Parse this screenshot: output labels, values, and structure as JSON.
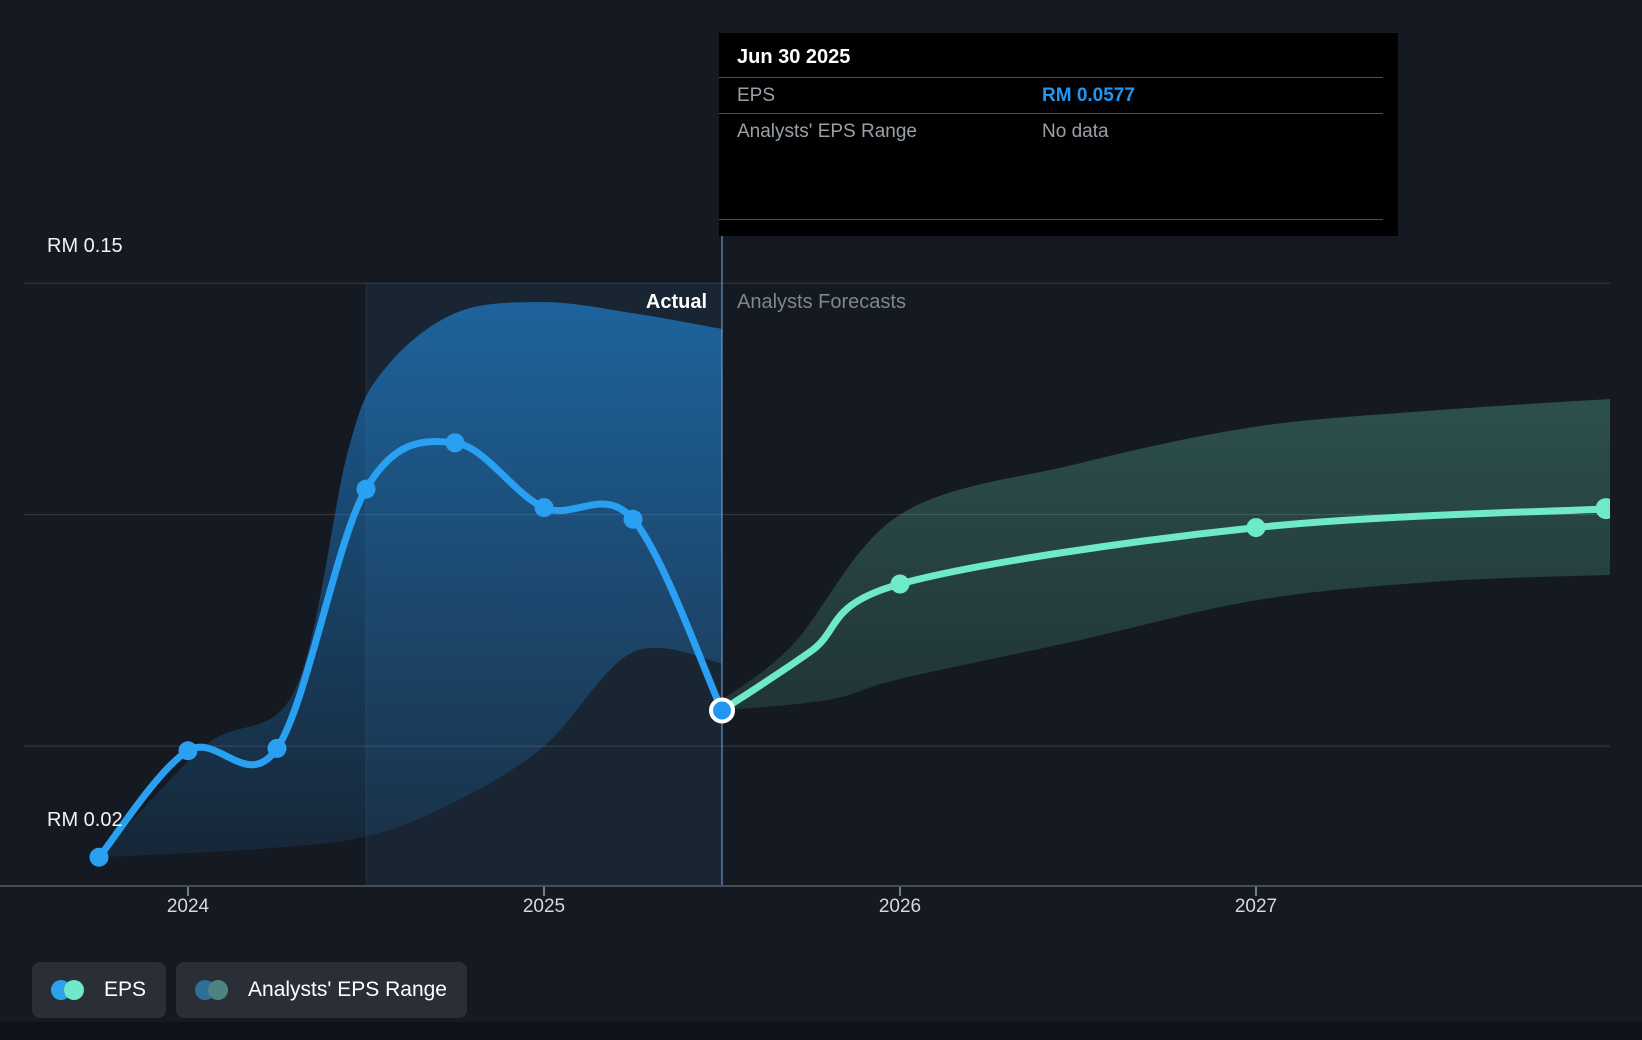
{
  "labels": {
    "actual": "Actual",
    "forecast": "Analysts Forecasts",
    "y_top": "RM 0.15",
    "y_bottom": "RM 0.02"
  },
  "tooltip": {
    "title": "Jun 30 2025",
    "rows": [
      {
        "label": "EPS",
        "value": "RM 0.0577",
        "type": "accent"
      },
      {
        "label": "Analysts' EPS Range",
        "value": "No data",
        "type": "muted"
      }
    ]
  },
  "legend": [
    {
      "label": "EPS",
      "colors": [
        "#2ba2ea",
        "#6fe8ca"
      ]
    },
    {
      "label": "Analysts' EPS Range",
      "colors": [
        "#2e7095",
        "#4f8381"
      ]
    }
  ],
  "colors": {
    "background": "#151a22",
    "accent_blue": "#2196f3",
    "line_blue": "#2aa0f2",
    "line_mint": "#6ee9c9",
    "gridline": "rgba(255,255,255,0.14)",
    "axis": "#474d55",
    "tick": "#787f88",
    "divider_line": "rgba(115,170,230,0.5)",
    "band_highlight": "rgba(64,140,210,0.10)",
    "blue_area_top": "rgba(33,150,243,0.55)",
    "blue_area_bottom": "rgba(33,150,243,0.08)",
    "mint_area_top": "rgba(110,231,200,0.26)",
    "mint_area_bottom": "rgba(110,231,200,0.13)"
  },
  "chart_data": {
    "type": "line",
    "title": "EPS: Actual vs Analysts Forecasts",
    "currency": "RM",
    "y_axis": {
      "top_label_value": 0.15,
      "bottom_label_value": 0.02,
      "gridline_values": [
        0.15,
        0.1,
        0.05
      ]
    },
    "x_ticks": [
      {
        "label": "2024",
        "year": 2024
      },
      {
        "label": "2025",
        "year": 2025
      },
      {
        "label": "2026",
        "year": 2026
      },
      {
        "label": "2027",
        "year": 2027
      }
    ],
    "divider_year": 2025.5,
    "highlight_band": {
      "from_year": 2024.5,
      "to_year": 2025.5
    },
    "actual_series": {
      "name": "EPS",
      "points": [
        {
          "date": "Sep 30 2023",
          "year": 2023.75,
          "value": 0.026
        },
        {
          "date": "Dec 31 2023",
          "year": 2024.0,
          "value": 0.049
        },
        {
          "date": "Mar 31 2024",
          "year": 2024.25,
          "value": 0.0495
        },
        {
          "date": "Jun 30 2024",
          "year": 2024.5,
          "value": 0.1055
        },
        {
          "date": "Sep 30 2024",
          "year": 2024.75,
          "value": 0.1155
        },
        {
          "date": "Dec 31 2024",
          "year": 2025.0,
          "value": 0.1015
        },
        {
          "date": "Mar 31 2025",
          "year": 2025.25,
          "value": 0.099
        },
        {
          "date": "Jun 30 2025",
          "year": 2025.5,
          "value": 0.0577
        }
      ]
    },
    "forecast_series": {
      "name": "EPS forecast",
      "points": [
        {
          "year": 2025.5,
          "value": 0.0577,
          "marker": "none"
        },
        {
          "year": 2025.75,
          "value": 0.0705,
          "marker": "none"
        },
        {
          "year": 2026.0,
          "value": 0.085,
          "marker": "dot"
        },
        {
          "year": 2027.0,
          "value": 0.0972,
          "marker": "dot"
        },
        {
          "year": 2028.0,
          "value": 0.1013,
          "marker": "edge"
        }
      ]
    },
    "actual_range": {
      "name": "Analysts' EPS Range (historical)",
      "top": [
        {
          "year": 2023.75,
          "value": 0.026
        },
        {
          "year": 2024.05,
          "value": 0.0502
        },
        {
          "year": 2024.3,
          "value": 0.0621
        },
        {
          "year": 2024.45,
          "value": 0.1139
        },
        {
          "year": 2024.55,
          "value": 0.1312
        },
        {
          "year": 2024.75,
          "value": 0.1435
        },
        {
          "year": 2025.0,
          "value": 0.1459
        },
        {
          "year": 2025.25,
          "value": 0.1435
        },
        {
          "year": 2025.5,
          "value": 0.1401
        }
      ],
      "bottom": [
        {
          "year": 2023.75,
          "value": 0.026
        },
        {
          "year": 2024.2,
          "value": 0.0278
        },
        {
          "year": 2024.5,
          "value": 0.0305
        },
        {
          "year": 2024.75,
          "value": 0.038
        },
        {
          "year": 2025.0,
          "value": 0.05
        },
        {
          "year": 2025.25,
          "value": 0.0703
        },
        {
          "year": 2025.5,
          "value": 0.0679
        }
      ]
    },
    "forecast_range": {
      "name": "Analysts' EPS Range (forecast)",
      "top": [
        {
          "year": 2025.5,
          "value": 0.06
        },
        {
          "year": 2025.7,
          "value": 0.072
        },
        {
          "year": 2026.0,
          "value": 0.1
        },
        {
          "year": 2026.5,
          "value": 0.111
        },
        {
          "year": 2027.0,
          "value": 0.119
        },
        {
          "year": 2027.5,
          "value": 0.1225
        },
        {
          "year": 2028.0,
          "value": 0.125
        }
      ],
      "bottom": [
        {
          "year": 2025.5,
          "value": 0.0577
        },
        {
          "year": 2025.8,
          "value": 0.06
        },
        {
          "year": 2026.0,
          "value": 0.0645
        },
        {
          "year": 2026.5,
          "value": 0.0728
        },
        {
          "year": 2027.0,
          "value": 0.0815
        },
        {
          "year": 2027.5,
          "value": 0.0855
        },
        {
          "year": 2028.0,
          "value": 0.087
        }
      ]
    }
  }
}
